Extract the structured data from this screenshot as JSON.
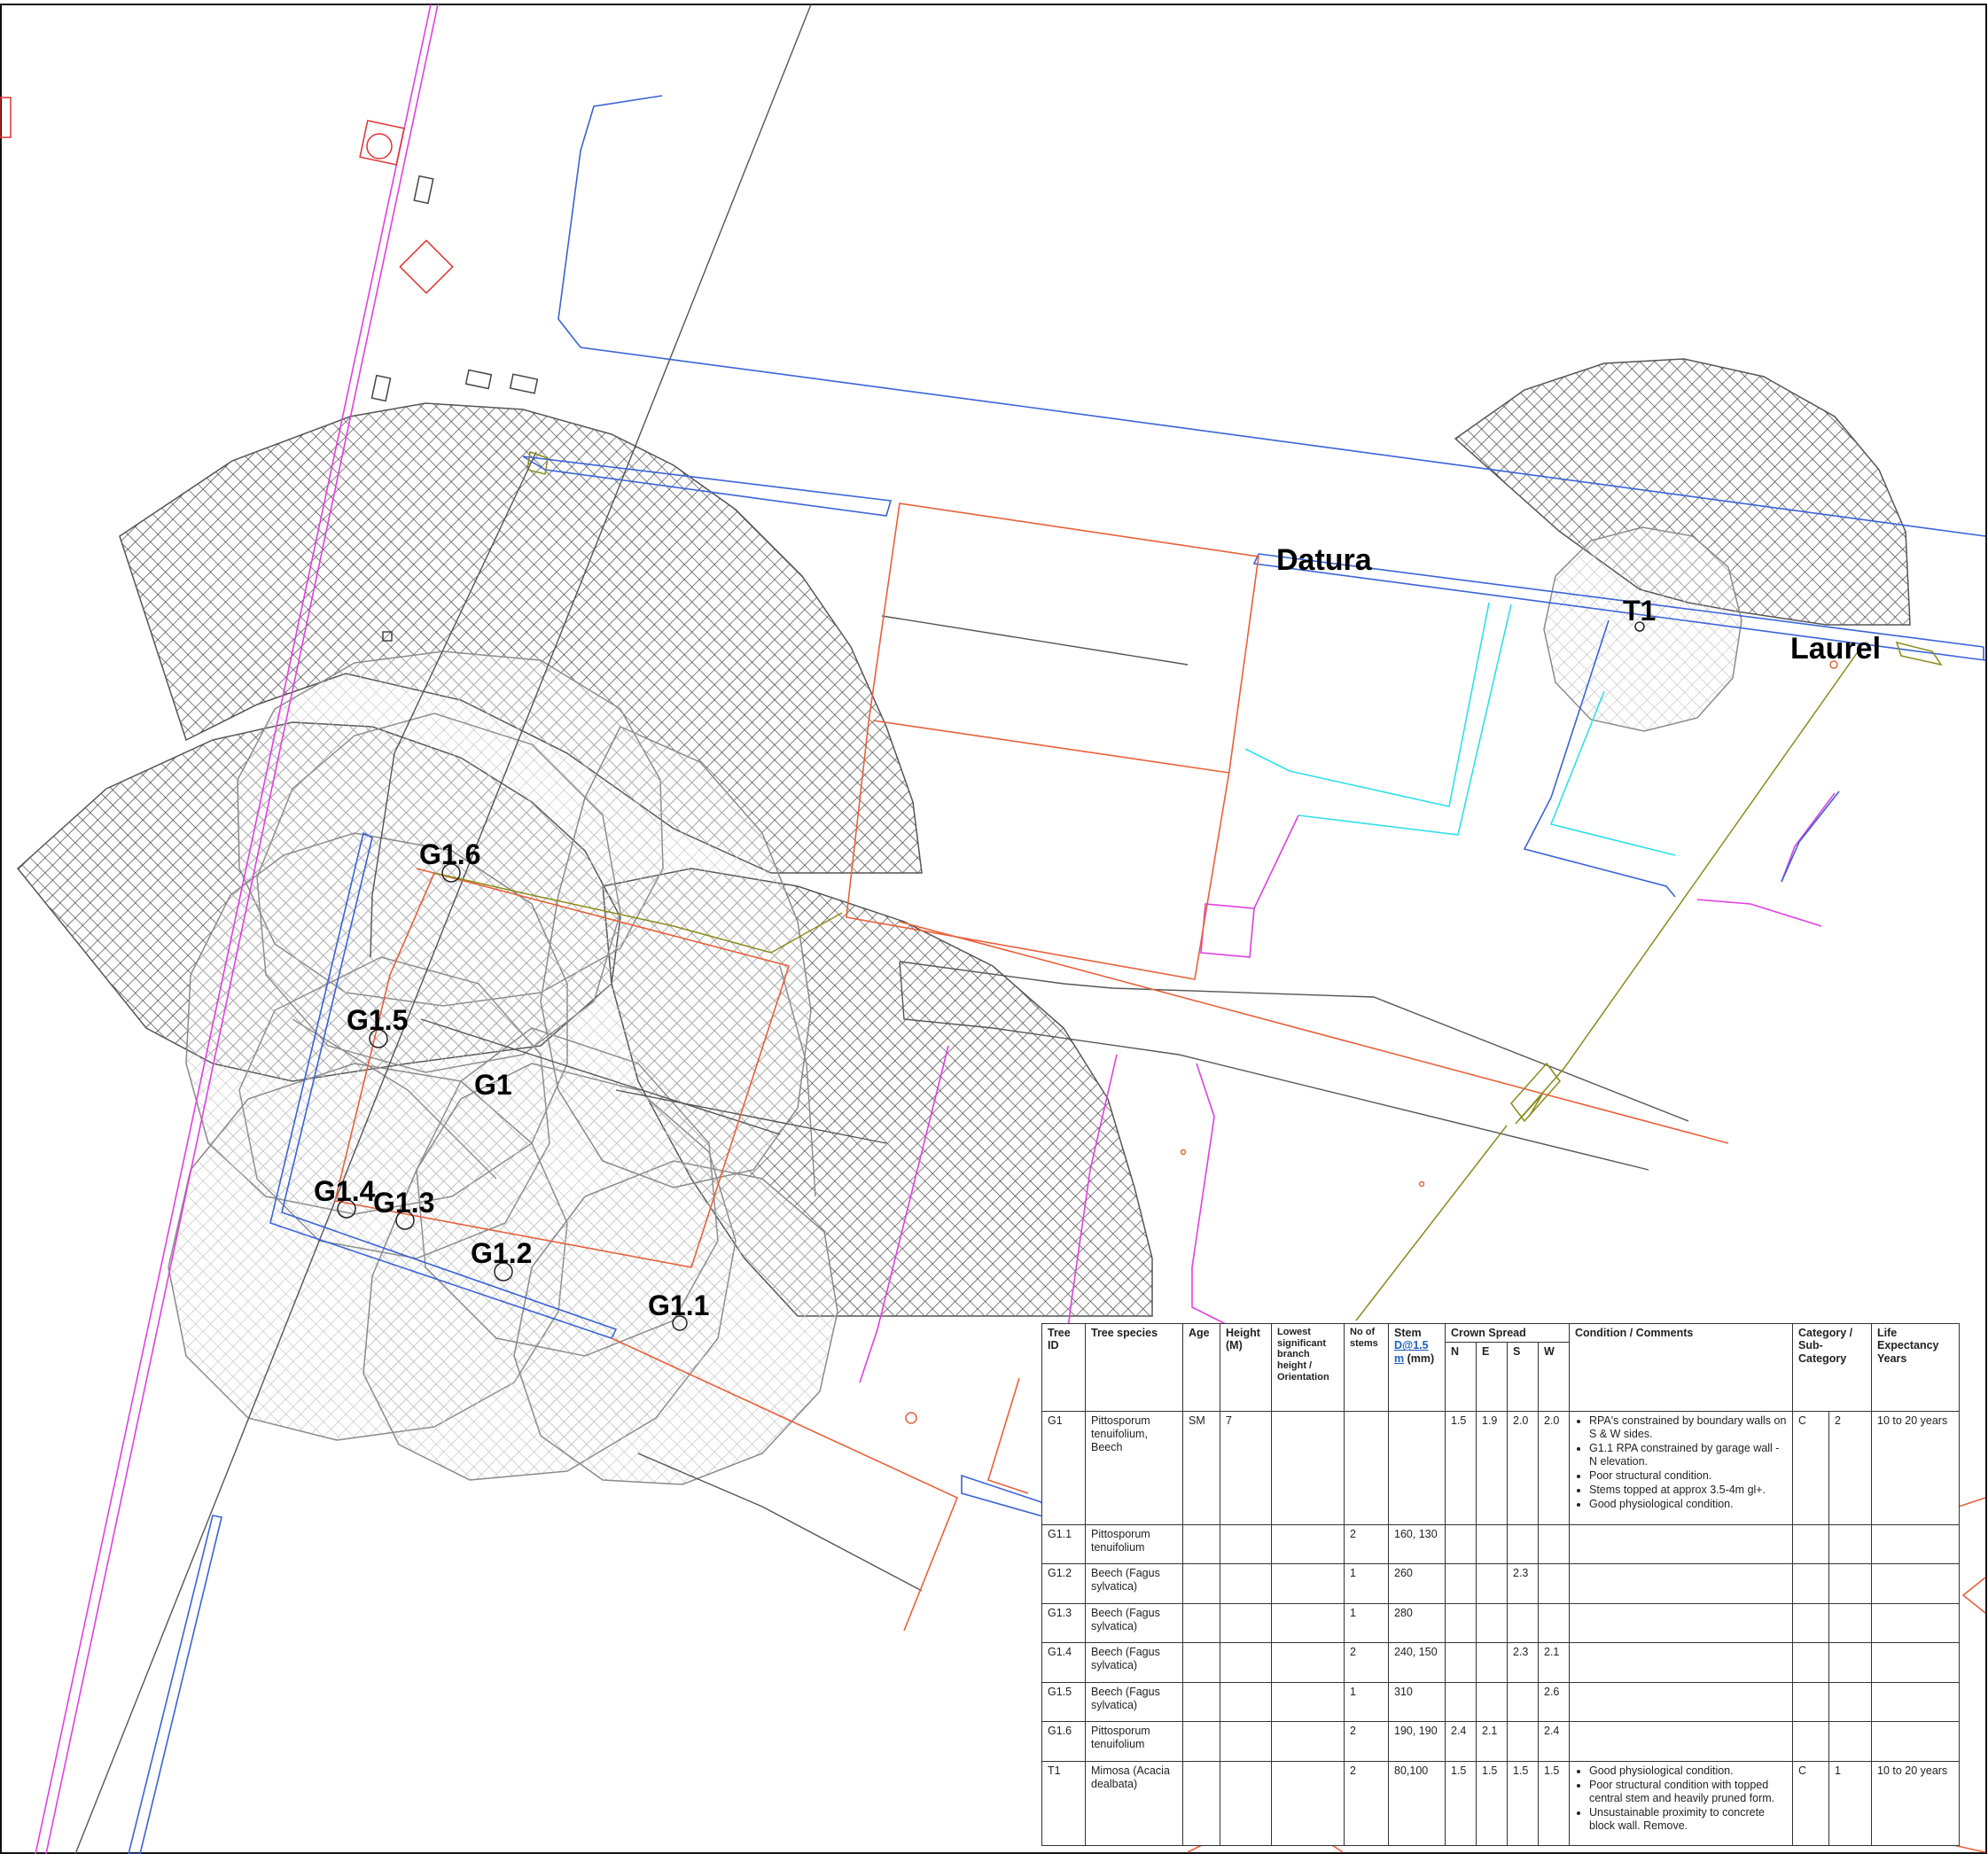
{
  "labels": {
    "g1": "G1",
    "g1_1": "G1.1",
    "g1_2": "G1.2",
    "g1_3": "G1.3",
    "g1_4": "G1.4",
    "g1_5": "G1.5",
    "g1_6": "G1.6",
    "t1": "T1",
    "datura": "Datura",
    "laurel": "Laurel"
  },
  "table": {
    "headers": {
      "tree_id": "Tree ID",
      "species": "Tree species",
      "age": "Age",
      "height": "Height (M)",
      "lowest_branch": "Lowest significant branch height / Orientation",
      "no_stems": "No of stems",
      "stem_prefix": "Stem",
      "stem_link": "D@1.5 m",
      "stem_suffix": "(mm)",
      "crown_spread": "Crown Spread",
      "n": "N",
      "e": "E",
      "s": "S",
      "w": "W",
      "condition": "Condition / Comments",
      "category": "Category / Sub-Category",
      "life": "Life Expectancy Years"
    },
    "rows": [
      {
        "id": "G1",
        "species": "Pittosporum tenuifolium, Beech",
        "age": "SM",
        "height": "7",
        "branch": "",
        "stems": "",
        "diam": "",
        "n": "1.5",
        "e": "1.9",
        "s": "2.0",
        "w": "2.0",
        "comments": [
          "RPA's constrained by boundary walls on S & W sides.",
          "G1.1 RPA constrained by garage wall -  N elevation.",
          "Poor structural condition.",
          "Stems topped at approx 3.5-4m gl+.",
          "Good physiological condition."
        ],
        "cat": "C",
        "sub": "2",
        "life": "10 to 20 years"
      },
      {
        "id": "G1.1",
        "species": "Pittosporum tenuifolium",
        "age": "",
        "height": "",
        "branch": "",
        "stems": "2",
        "diam": "160, 130",
        "n": "",
        "e": "",
        "s": "",
        "w": "",
        "comments": [],
        "cat": "",
        "sub": "",
        "life": ""
      },
      {
        "id": "G1.2",
        "species": "Beech (Fagus sylvatica)",
        "age": "",
        "height": "",
        "branch": "",
        "stems": "1",
        "diam": "260",
        "n": "",
        "e": "",
        "s": "2.3",
        "w": "",
        "comments": [],
        "cat": "",
        "sub": "",
        "life": ""
      },
      {
        "id": "G1.3",
        "species": "Beech (Fagus sylvatica)",
        "age": "",
        "height": "",
        "branch": "",
        "stems": "1",
        "diam": "280",
        "n": "",
        "e": "",
        "s": "",
        "w": "",
        "comments": [],
        "cat": "",
        "sub": "",
        "life": ""
      },
      {
        "id": "G1.4",
        "species": "Beech (Fagus sylvatica)",
        "age": "",
        "height": "",
        "branch": "",
        "stems": "2",
        "diam": "240, 150",
        "n": "",
        "e": "",
        "s": "2.3",
        "w": "2.1",
        "comments": [],
        "cat": "",
        "sub": "",
        "life": ""
      },
      {
        "id": "G1.5",
        "species": "Beech (Fagus sylvatica)",
        "age": "",
        "height": "",
        "branch": "",
        "stems": "1",
        "diam": "310",
        "n": "",
        "e": "",
        "s": "",
        "w": "2.6",
        "comments": [],
        "cat": "",
        "sub": "",
        "life": ""
      },
      {
        "id": "G1.6",
        "species": "Pittosporum tenuifolium",
        "age": "",
        "height": "",
        "branch": "",
        "stems": "2",
        "diam": "190, 190",
        "n": "2.4",
        "e": "2.1",
        "s": "",
        "w": "2.4",
        "comments": [],
        "cat": "",
        "sub": "",
        "life": ""
      },
      {
        "id": "T1",
        "species": "Mimosa (Acacia dealbata)",
        "age": "",
        "height": "",
        "branch": "",
        "stems": "2",
        "diam": "80,100",
        "n": "1.5",
        "e": "1.5",
        "s": "1.5",
        "w": "1.5",
        "comments": [
          "Good physiological condition.",
          "Poor structural condition with topped central stem and heavily pruned form.",
          "Unsustainable proximity to concrete block wall. Remove."
        ],
        "cat": "C",
        "sub": "1",
        "life": "10 to 20 years"
      }
    ]
  },
  "colors": {
    "boundary_red": "#e8603a",
    "service_blue": "#3a63d6",
    "magenta": "#e040e0",
    "cyan": "#2ee0e8",
    "olive": "#8a8a1a",
    "rpa_dark": "#555555",
    "canopy_light": "#9a9a9a"
  }
}
